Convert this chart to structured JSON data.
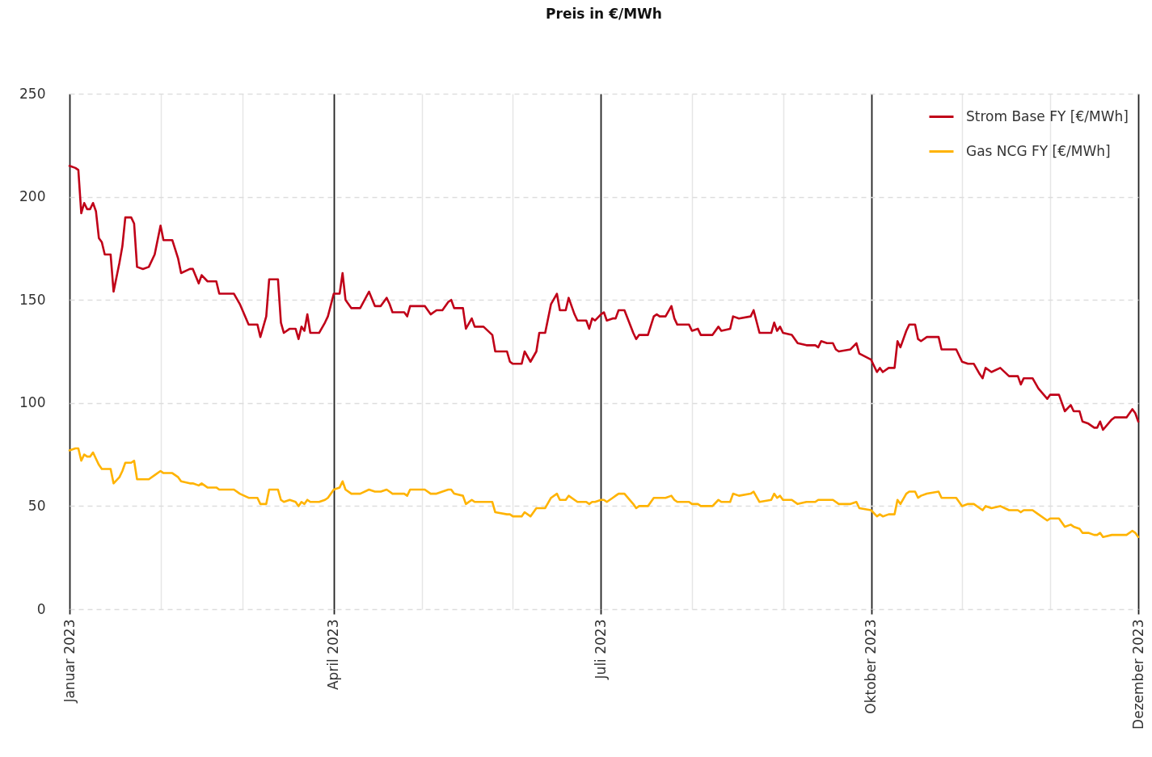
{
  "chart_data": {
    "type": "line",
    "title": "Preis in €/MWh",
    "x": [
      "2023-01-01",
      "2023-01-03",
      "2023-01-04",
      "2023-01-05",
      "2023-01-06",
      "2023-01-07",
      "2023-01-08",
      "2023-01-09",
      "2023-01-10",
      "2023-01-11",
      "2023-01-12",
      "2023-01-13",
      "2023-01-15",
      "2023-01-16",
      "2023-01-18",
      "2023-01-19",
      "2023-01-20",
      "2023-01-22",
      "2023-01-23",
      "2023-01-24",
      "2023-01-26",
      "2023-01-28",
      "2023-01-30",
      "2023-02-01",
      "2023-02-02",
      "2023-02-05",
      "2023-02-07",
      "2023-02-08",
      "2023-02-11",
      "2023-02-12",
      "2023-02-14",
      "2023-02-15",
      "2023-02-17",
      "2023-02-20",
      "2023-02-21",
      "2023-02-26",
      "2023-02-28",
      "2023-03-03",
      "2023-03-06",
      "2023-03-07",
      "2023-03-09",
      "2023-03-10",
      "2023-03-13",
      "2023-03-14",
      "2023-03-15",
      "2023-03-17",
      "2023-03-19",
      "2023-03-20",
      "2023-03-21",
      "2023-03-22",
      "2023-03-23",
      "2023-03-24",
      "2023-03-27",
      "2023-03-29",
      "2023-03-30",
      "2023-04-01",
      "2023-04-03",
      "2023-04-04",
      "2023-04-05",
      "2023-04-07",
      "2023-04-10",
      "2023-04-13",
      "2023-04-15",
      "2023-04-17",
      "2023-04-19",
      "2023-04-20",
      "2023-04-21",
      "2023-04-25",
      "2023-04-26",
      "2023-04-27",
      "2023-05-02",
      "2023-05-04",
      "2023-05-06",
      "2023-05-08",
      "2023-05-10",
      "2023-05-11",
      "2023-05-12",
      "2023-05-15",
      "2023-05-16",
      "2023-05-18",
      "2023-05-19",
      "2023-05-22",
      "2023-05-25",
      "2023-05-26",
      "2023-05-30",
      "2023-05-31",
      "2023-06-01",
      "2023-06-04",
      "2023-06-05",
      "2023-06-07",
      "2023-06-09",
      "2023-06-10",
      "2023-06-12",
      "2023-06-14",
      "2023-06-16",
      "2023-06-17",
      "2023-06-19",
      "2023-06-20",
      "2023-06-22",
      "2023-06-23",
      "2023-06-26",
      "2023-06-27",
      "2023-06-28",
      "2023-06-29",
      "2023-07-01",
      "2023-07-02",
      "2023-07-03",
      "2023-07-05",
      "2023-07-06",
      "2023-07-07",
      "2023-07-09",
      "2023-07-12",
      "2023-07-13",
      "2023-07-14",
      "2023-07-17",
      "2023-07-19",
      "2023-07-20",
      "2023-07-21",
      "2023-07-23",
      "2023-07-25",
      "2023-07-26",
      "2023-07-27",
      "2023-07-31",
      "2023-08-01",
      "2023-08-03",
      "2023-08-04",
      "2023-08-08",
      "2023-08-10",
      "2023-08-11",
      "2023-08-14",
      "2023-08-15",
      "2023-08-17",
      "2023-08-21",
      "2023-08-22",
      "2023-08-24",
      "2023-08-28",
      "2023-08-29",
      "2023-08-30",
      "2023-08-31",
      "2023-09-01",
      "2023-09-04",
      "2023-09-06",
      "2023-09-09",
      "2023-09-12",
      "2023-09-13",
      "2023-09-14",
      "2023-09-16",
      "2023-09-18",
      "2023-09-19",
      "2023-09-20",
      "2023-09-24",
      "2023-09-26",
      "2023-09-27",
      "2023-10-01",
      "2023-10-03",
      "2023-10-04",
      "2023-10-05",
      "2023-10-07",
      "2023-10-09",
      "2023-10-10",
      "2023-10-11",
      "2023-10-13",
      "2023-10-14",
      "2023-10-16",
      "2023-10-17",
      "2023-10-18",
      "2023-10-20",
      "2023-10-24",
      "2023-10-25",
      "2023-10-30",
      "2023-11-01",
      "2023-11-03",
      "2023-11-05",
      "2023-11-07",
      "2023-11-08",
      "2023-11-09",
      "2023-11-11",
      "2023-11-14",
      "2023-11-17",
      "2023-11-20",
      "2023-11-21",
      "2023-11-22",
      "2023-11-25",
      "2023-11-27",
      "2023-11-30",
      "2023-12-01",
      "2023-12-04",
      "2023-12-06",
      "2023-12-08",
      "2023-12-09",
      "2023-12-11",
      "2023-12-12",
      "2023-12-14",
      "2023-12-16",
      "2023-12-17",
      "2023-12-18",
      "2023-12-19",
      "2023-12-22",
      "2023-12-23",
      "2023-12-27",
      "2023-12-29",
      "2023-12-30",
      "2023-12-31"
    ],
    "series": [
      {
        "name": "Strom Base FY [€/MWh]",
        "color": "#c00018",
        "values": [
          215,
          214,
          213,
          192,
          197,
          194,
          194,
          197,
          193,
          180,
          178,
          172,
          172,
          154,
          168,
          176,
          190,
          190,
          187,
          166,
          165,
          166,
          172,
          186,
          179,
          179,
          170,
          163,
          165,
          165,
          158,
          162,
          159,
          159,
          153,
          153,
          148,
          138,
          138,
          132,
          142,
          160,
          160,
          139,
          134,
          136,
          136,
          131,
          137,
          135,
          143,
          134,
          134,
          139,
          142,
          153,
          153,
          163,
          150,
          146,
          146,
          154,
          147,
          147,
          151,
          148,
          144,
          144,
          142,
          147,
          147,
          143,
          145,
          145,
          149,
          150,
          146,
          146,
          136,
          141,
          137,
          137,
          133,
          125,
          125,
          120,
          119,
          119,
          125,
          120,
          125,
          134,
          134,
          148,
          153,
          145,
          145,
          151,
          143,
          140,
          140,
          136,
          141,
          140,
          143,
          144,
          140,
          141,
          141,
          145,
          145,
          134,
          131,
          133,
          133,
          142,
          143,
          142,
          142,
          147,
          141,
          138,
          138,
          135,
          136,
          133,
          133,
          137,
          135,
          136,
          142,
          141,
          142,
          145,
          134,
          134,
          139,
          135,
          137,
          134,
          133,
          129,
          128,
          128,
          127,
          130,
          129,
          129,
          126,
          125,
          126,
          129,
          124,
          121,
          115,
          117,
          115,
          117,
          117,
          130,
          127,
          135,
          138,
          138,
          131,
          130,
          132,
          132,
          126,
          126,
          120,
          119,
          119,
          114,
          112,
          117,
          115,
          117,
          113,
          113,
          109,
          112,
          112,
          107,
          102,
          104,
          104,
          96,
          99,
          96,
          96,
          91,
          90,
          88,
          88,
          91,
          87,
          92,
          93,
          93,
          97,
          95,
          91
        ]
      },
      {
        "name": "Gas NCG FY [€/MWh]",
        "color": "#ffb300",
        "values": [
          77,
          78,
          78,
          72,
          75,
          74,
          74,
          76,
          73,
          70,
          68,
          68,
          68,
          61,
          64,
          67,
          71,
          71,
          72,
          63,
          63,
          63,
          65,
          67,
          66,
          66,
          64,
          62,
          61,
          61,
          60,
          61,
          59,
          59,
          58,
          58,
          56,
          54,
          54,
          51,
          51,
          58,
          58,
          53,
          52,
          53,
          52,
          50,
          52,
          51,
          53,
          52,
          52,
          53,
          54,
          58,
          59,
          62,
          58,
          56,
          56,
          58,
          57,
          57,
          58,
          57,
          56,
          56,
          55,
          58,
          58,
          56,
          56,
          57,
          58,
          58,
          56,
          55,
          51,
          53,
          52,
          52,
          52,
          47,
          46,
          46,
          45,
          45,
          47,
          45,
          49,
          49,
          49,
          54,
          56,
          53,
          53,
          55,
          53,
          52,
          52,
          51,
          52,
          52,
          53,
          53,
          52,
          54,
          55,
          56,
          56,
          51,
          49,
          50,
          50,
          54,
          54,
          54,
          54,
          55,
          53,
          52,
          52,
          51,
          51,
          50,
          50,
          53,
          52,
          52,
          56,
          55,
          56,
          57,
          52,
          53,
          56,
          54,
          55,
          53,
          53,
          51,
          52,
          52,
          53,
          53,
          53,
          53,
          52,
          51,
          51,
          52,
          49,
          48,
          45,
          46,
          45,
          46,
          46,
          53,
          51,
          56,
          57,
          57,
          54,
          55,
          56,
          57,
          54,
          54,
          50,
          51,
          51,
          49,
          48,
          50,
          49,
          50,
          48,
          48,
          47,
          48,
          48,
          46,
          43,
          44,
          44,
          40,
          41,
          40,
          39,
          37,
          37,
          36,
          36,
          37,
          35,
          36,
          36,
          36,
          38,
          37,
          35
        ]
      }
    ],
    "xlim": [
      "2023-01-01",
      "2023-12-31"
    ],
    "xticks": [
      {
        "value": "2023-01-01",
        "label": "Januar 2023"
      },
      {
        "value": "2023-02-01",
        "label": null
      },
      {
        "value": "2023-03-01",
        "label": null
      },
      {
        "value": "2023-04-01",
        "label": "April 2023"
      },
      {
        "value": "2023-05-01",
        "label": null
      },
      {
        "value": "2023-06-01",
        "label": null
      },
      {
        "value": "2023-07-01",
        "label": "Juli 2023"
      },
      {
        "value": "2023-08-01",
        "label": null
      },
      {
        "value": "2023-09-01",
        "label": null
      },
      {
        "value": "2023-10-01",
        "label": "Oktober 2023"
      },
      {
        "value": "2023-11-01",
        "label": null
      },
      {
        "value": "2023-12-01",
        "label": null
      },
      {
        "value": "2023-12-31",
        "label": "Dezember 2023"
      }
    ],
    "ylim": [
      0,
      250
    ],
    "yticks": [
      0,
      50,
      100,
      150,
      200,
      250
    ],
    "grid": true,
    "legend": "top right",
    "marker": "none",
    "line_style": "solid"
  }
}
